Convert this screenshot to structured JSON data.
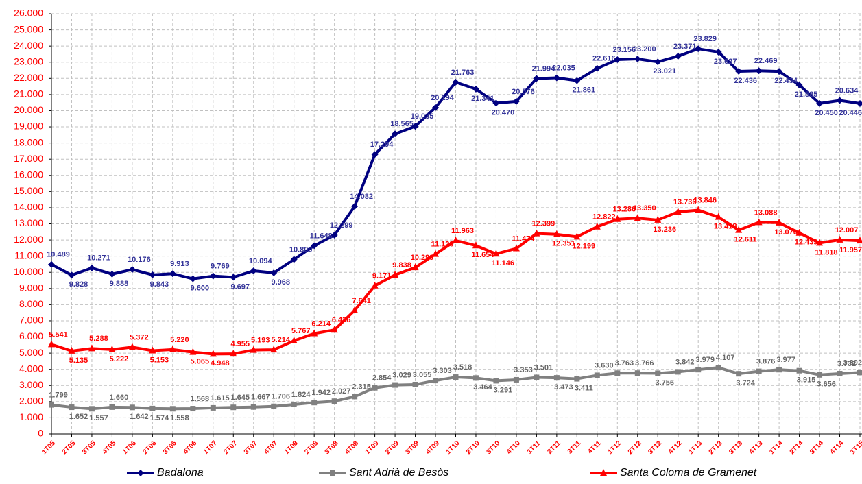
{
  "chart_data": {
    "type": "line",
    "categories": [
      "1T05",
      "2T05",
      "3T05",
      "4T05",
      "1T06",
      "2T06",
      "3T06",
      "4T06",
      "1T07",
      "2T07",
      "3T07",
      "4T07",
      "1T08",
      "2T08",
      "3T08",
      "4T08",
      "1T09",
      "2T09",
      "3T09",
      "4T09",
      "1T10",
      "2T10",
      "3T10",
      "4T10",
      "1T11",
      "2T11",
      "3T11",
      "4T11",
      "1T12",
      "2T12",
      "3T12",
      "4T12",
      "1T13",
      "2T13",
      "3T13",
      "4T13",
      "1T14",
      "2T14",
      "3T14",
      "4T14",
      "1T15"
    ],
    "series": [
      {
        "name": "Badalona",
        "color": "#000080",
        "label_color": "#333399",
        "marker": "diamond",
        "values": [
          10489,
          9828,
          10271,
          9888,
          10176,
          9843,
          9913,
          9600,
          9769,
          9697,
          10094,
          9968,
          10800,
          11648,
          12299,
          14082,
          17294,
          18565,
          19035,
          20194,
          21763,
          21341,
          20470,
          20576,
          21994,
          22035,
          21861,
          22616,
          23156,
          23200,
          23021,
          23371,
          23829,
          23627,
          22436,
          22469,
          22434,
          21585,
          20450,
          20634,
          20446
        ],
        "value_labels": [
          "10.489",
          "9.828",
          "10.271",
          "9.888",
          "10.176",
          "9.843",
          "9.913",
          "9.600",
          "9.769",
          "9.697",
          "10.094",
          "9.968",
          "10.800",
          "11.648",
          "12.299",
          "14.082",
          "17.294",
          "18.565",
          "19.035",
          "20.194",
          "21.763",
          "21.341",
          "20.470",
          "20.576",
          "21.994",
          "22.035",
          "21.861",
          "22.616",
          "23.156",
          "23.200",
          "23.021",
          "23.371",
          "23.829",
          "23.627",
          "22.436",
          "22.469",
          "22.434",
          "21.585",
          "20.450",
          "20.634",
          "20.446"
        ]
      },
      {
        "name": "Sant Adrià de Besòs",
        "color": "#808080",
        "label_color": "#666666",
        "marker": "square",
        "values": [
          1799,
          1652,
          1557,
          1660,
          1642,
          1574,
          1558,
          1568,
          1615,
          1645,
          1667,
          1706,
          1824,
          1942,
          2027,
          2315,
          2854,
          3029,
          3055,
          3303,
          3518,
          3464,
          3291,
          3353,
          3501,
          3473,
          3411,
          3630,
          3763,
          3766,
          3756,
          3842,
          3979,
          4107,
          3724,
          3876,
          3977,
          3915,
          3656,
          3732,
          3802
        ],
        "value_labels": [
          "1.799",
          "1.652",
          "1.557",
          "1.660",
          "1.642",
          "1.574",
          "1.558",
          "1.568",
          "1.615",
          "1.645",
          "1.667",
          "1.706",
          "1.824",
          "1.942",
          "2.027",
          "2.315",
          "2.854",
          "3.029",
          "3.055",
          "3.303",
          "3.518",
          "3.464",
          "3.291",
          "3.353",
          "3.501",
          "3.473",
          "3.411",
          "3.630",
          "3.763",
          "3.766",
          "3.756",
          "3.842",
          "3.979",
          "4.107",
          "3.724",
          "3.876",
          "3.977",
          "3.915",
          "3.656",
          "3.732",
          "3.802"
        ]
      },
      {
        "name": "Santa Coloma de Gramenet",
        "color": "#ff0000",
        "label_color": "#ff0000",
        "marker": "triangle",
        "values": [
          5541,
          5135,
          5288,
          5222,
          5372,
          5153,
          5220,
          5065,
          4948,
          4955,
          5193,
          5214,
          5767,
          6214,
          6436,
          7641,
          9171,
          9838,
          10299,
          11128,
          11963,
          11654,
          11146,
          11474,
          12399,
          12351,
          12199,
          12822,
          13286,
          13350,
          13236,
          13736,
          13846,
          13418,
          12611,
          13088,
          13070,
          12439,
          11818,
          12007,
          11957
        ],
        "value_labels": [
          "5.541",
          "5.135",
          "5.288",
          "5.222",
          "5.372",
          "5.153",
          "5.220",
          "5.065",
          "4.948",
          "4.955",
          "5.193",
          "5.214",
          "5.767",
          "6.214",
          "6.436",
          "7.641",
          "9.171",
          "9.838",
          "10.299",
          "11.128",
          "11.963",
          "11.654",
          "11.146",
          "11.474",
          "12.399",
          "12.351",
          "12.199",
          "12.822",
          "13.286",
          "13.350",
          "13.236",
          "13.736",
          "13.846",
          "13.418",
          "12.611",
          "13.088",
          "13.070",
          "12.439",
          "11.818",
          "12.007",
          "11.957"
        ]
      }
    ],
    "ylim": [
      0,
      26000
    ],
    "yticks": [
      0,
      {
        "value": 1000,
        "label": "1.000"
      },
      {
        "value": 2000,
        "label": "2.000"
      },
      {
        "value": 3000,
        "label": "3.000"
      },
      {
        "value": 4000,
        "label": "4.000"
      },
      {
        "value": 5000,
        "label": "5.000"
      },
      {
        "value": 6000,
        "label": "6.000"
      },
      {
        "value": 7000,
        "label": "7.000"
      },
      {
        "value": 8000,
        "label": "8.000"
      },
      {
        "value": 9000,
        "label": "9.000"
      },
      {
        "value": 10000,
        "label": "10.000"
      },
      {
        "value": 11000,
        "label": "11.000"
      },
      {
        "value": 12000,
        "label": "12.000"
      },
      {
        "value": 13000,
        "label": "13.000"
      },
      {
        "value": 14000,
        "label": "14.000"
      },
      {
        "value": 15000,
        "label": "15.000"
      },
      {
        "value": 16000,
        "label": "16.000"
      },
      {
        "value": 17000,
        "label": "17.000"
      },
      {
        "value": 18000,
        "label": "18.000"
      },
      {
        "value": 19000,
        "label": "19.000"
      },
      {
        "value": 20000,
        "label": "20.000"
      },
      {
        "value": 21000,
        "label": "21.000"
      },
      {
        "value": 22000,
        "label": "22.000"
      },
      {
        "value": 23000,
        "label": "23.000"
      },
      {
        "value": 24000,
        "label": "24.000"
      },
      {
        "value": 25000,
        "label": "25.000"
      },
      {
        "value": 26000,
        "label": "26.000"
      }
    ],
    "grid": true,
    "legend": "bottom"
  }
}
